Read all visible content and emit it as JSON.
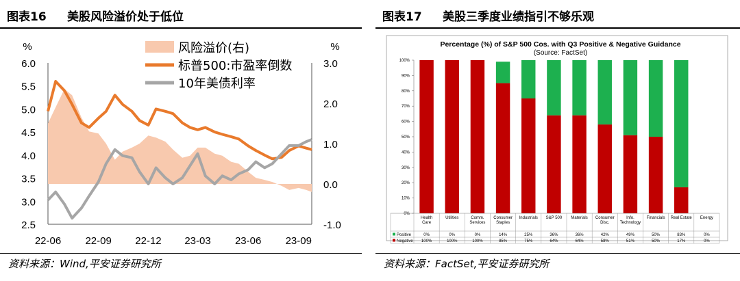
{
  "left": {
    "figure_label": "图表16",
    "figure_title": "美股风险溢价处于低位",
    "source": "资料来源：Wind,平安证券研究所"
  },
  "right": {
    "figure_label": "图表17",
    "figure_title": "美股三季度业绩指引不够乐观",
    "source": "资料来源：FactSet,平安证券研究所"
  },
  "chart_data": [
    {
      "type": "line",
      "title": "",
      "left_unit": "%",
      "right_unit": "%",
      "ylim_left": [
        2.5,
        6.0
      ],
      "yticks_left": [
        "2.5",
        "3.0",
        "3.5",
        "4.0",
        "4.5",
        "5.0",
        "5.5",
        "6.0"
      ],
      "ylim_right": [
        -1.0,
        3.0
      ],
      "yticks_right": [
        "-1.0",
        "0.0",
        "1.0",
        "2.0",
        "3.0"
      ],
      "x_ticks": [
        "22-06",
        "22-09",
        "22-12",
        "23-03",
        "23-06",
        "23-09"
      ],
      "legend_placement": "top-center",
      "series": [
        {
          "name": "风险溢价(右)",
          "kind": "area",
          "axis": "right",
          "color": "#F8C9AE",
          "x": [
            "2022-06-01",
            "2022-06-15",
            "2022-07-01",
            "2022-07-15",
            "2022-08-01",
            "2022-08-15",
            "2022-09-01",
            "2022-09-15",
            "2022-10-01",
            "2022-10-15",
            "2022-11-01",
            "2022-11-15",
            "2022-12-01",
            "2022-12-15",
            "2023-01-01",
            "2023-01-15",
            "2023-02-01",
            "2023-02-15",
            "2023-03-01",
            "2023-03-15",
            "2023-04-01",
            "2023-04-15",
            "2023-05-01",
            "2023-05-15",
            "2023-06-01",
            "2023-06-15",
            "2023-07-01",
            "2023-07-15",
            "2023-08-01",
            "2023-08-15",
            "2023-09-01",
            "2023-09-15",
            "2023-09-25"
          ],
          "values": [
            1.5,
            1.9,
            2.35,
            2.2,
            1.65,
            1.3,
            1.25,
            1.0,
            0.6,
            0.8,
            0.9,
            1.0,
            1.2,
            1.15,
            1.05,
            0.85,
            0.65,
            0.7,
            0.9,
            0.9,
            0.75,
            0.7,
            0.55,
            0.5,
            0.3,
            0.15,
            0.1,
            0.05,
            -0.05,
            -0.15,
            -0.1,
            -0.15,
            -0.2
          ]
        },
        {
          "name": "标普500:市盈率倒数",
          "kind": "line",
          "axis": "left",
          "color": "#E97A2C",
          "x": [
            "2022-06-01",
            "2022-06-15",
            "2022-07-01",
            "2022-07-15",
            "2022-08-01",
            "2022-08-15",
            "2022-09-01",
            "2022-09-15",
            "2022-10-01",
            "2022-10-15",
            "2022-11-01",
            "2022-11-15",
            "2022-12-01",
            "2022-12-15",
            "2023-01-01",
            "2023-01-15",
            "2023-02-01",
            "2023-02-15",
            "2023-03-01",
            "2023-03-15",
            "2023-04-01",
            "2023-04-15",
            "2023-05-01",
            "2023-05-15",
            "2023-06-01",
            "2023-06-15",
            "2023-07-01",
            "2023-07-15",
            "2023-08-01",
            "2023-08-15",
            "2023-09-01",
            "2023-09-15",
            "2023-09-25"
          ],
          "values": [
            4.95,
            5.6,
            5.4,
            5.1,
            4.7,
            4.6,
            4.8,
            4.95,
            5.3,
            5.1,
            4.95,
            4.75,
            4.65,
            5.0,
            4.95,
            4.9,
            4.7,
            4.6,
            4.55,
            4.6,
            4.5,
            4.45,
            4.4,
            4.35,
            4.2,
            4.1,
            4.0,
            3.92,
            3.95,
            4.1,
            4.2,
            4.15,
            4.12
          ]
        },
        {
          "name": "10年美债利率",
          "kind": "line",
          "axis": "right",
          "color": "#A6A6A6",
          "x": [
            "2022-06-01",
            "2022-06-15",
            "2022-07-01",
            "2022-07-15",
            "2022-08-01",
            "2022-08-15",
            "2022-09-01",
            "2022-09-15",
            "2022-10-01",
            "2022-10-15",
            "2022-11-01",
            "2022-11-15",
            "2022-12-01",
            "2022-12-15",
            "2023-01-01",
            "2023-01-15",
            "2023-02-01",
            "2023-02-15",
            "2023-03-01",
            "2023-03-15",
            "2023-04-01",
            "2023-04-15",
            "2023-05-01",
            "2023-05-15",
            "2023-06-01",
            "2023-06-15",
            "2023-07-01",
            "2023-07-15",
            "2023-08-01",
            "2023-08-15",
            "2023-09-01",
            "2023-09-15",
            "2023-09-25"
          ],
          "values": [
            -0.4,
            -0.2,
            -0.5,
            -0.85,
            -0.6,
            -0.3,
            0.05,
            0.5,
            0.85,
            0.7,
            0.65,
            0.3,
            0.0,
            0.4,
            0.15,
            0.0,
            0.15,
            0.45,
            0.75,
            0.2,
            0.0,
            0.2,
            0.1,
            0.25,
            0.35,
            0.55,
            0.4,
            0.5,
            0.75,
            0.95,
            0.95,
            1.05,
            1.1
          ]
        }
      ]
    },
    {
      "type": "bar",
      "stacked": true,
      "title": "Percentage (%) of S&P 500 Cos. with Q3 Positive & Negative Guidance",
      "subtitle": "(Source: FactSet)",
      "ylim": [
        0,
        100
      ],
      "yticks": [
        "0%",
        "10%",
        "20%",
        "30%",
        "40%",
        "50%",
        "60%",
        "70%",
        "80%",
        "90%",
        "100%"
      ],
      "categories": [
        [
          "Health",
          "Care"
        ],
        [
          "Utilities"
        ],
        [
          "Comm.",
          "Services"
        ],
        [
          "Consumer",
          "Staples"
        ],
        [
          "Industrials"
        ],
        [
          "S&P 500"
        ],
        [
          "Materials"
        ],
        [
          "Consumer",
          "Disc."
        ],
        [
          "Info.",
          "Technology"
        ],
        [
          "Financials"
        ],
        [
          "Real Estate"
        ],
        [
          "Energy"
        ]
      ],
      "series": [
        {
          "name": "Positive",
          "color": "#1DB04F",
          "values": [
            0,
            0,
            0,
            14,
            25,
            36,
            36,
            42,
            49,
            50,
            83,
            0
          ],
          "labels": [
            "0%",
            "0%",
            "0%",
            "14%",
            "25%",
            "36%",
            "36%",
            "42%",
            "49%",
            "50%",
            "83%",
            "0%"
          ]
        },
        {
          "name": "Negative",
          "color": "#C00000",
          "values": [
            100,
            100,
            100,
            85,
            75,
            64,
            64,
            58,
            51,
            50,
            17,
            0
          ],
          "labels": [
            "100%",
            "100%",
            "100%",
            "85%",
            "75%",
            "64%",
            "64%",
            "58%",
            "51%",
            "50%",
            "17%",
            "0%"
          ]
        }
      ]
    }
  ]
}
